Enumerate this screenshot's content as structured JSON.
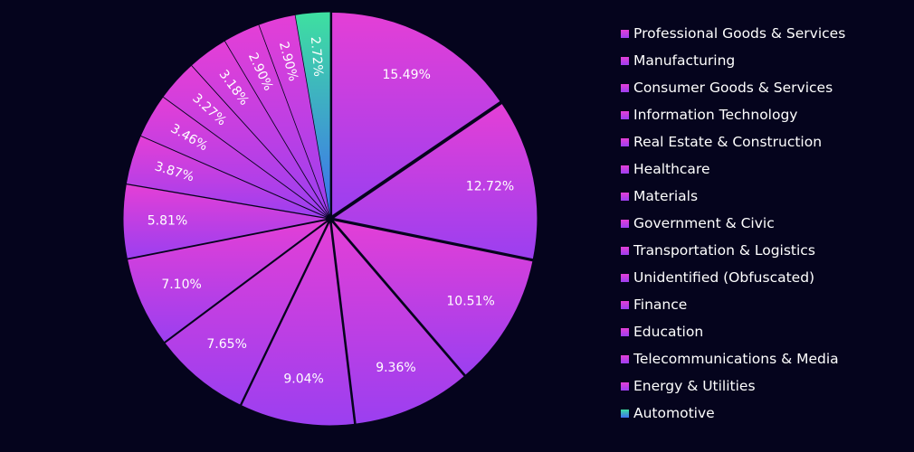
{
  "chart_data": {
    "type": "pie",
    "categories": [
      "Professional Goods & Services",
      "Manufacturing",
      "Consumer Goods & Services",
      "Information Technology",
      "Real Estate & Construction",
      "Healthcare",
      "Materials",
      "Government & Civic",
      "Transportation & Logistics",
      "Unidentified (Obfuscated)",
      "Finance",
      "Education",
      "Telecommunications & Media",
      "Energy & Utilities",
      "Automotive"
    ],
    "values": [
      15.49,
      12.72,
      10.51,
      9.36,
      9.04,
      7.65,
      7.1,
      5.81,
      3.87,
      3.46,
      3.27,
      3.18,
      2.9,
      2.9,
      2.72
    ],
    "labels": [
      "15.49%",
      "12.72%",
      "10.51%",
      "9.36%",
      "9.04%",
      "7.65%",
      "7.10%",
      "5.81%",
      "3.87%",
      "3.46%",
      "3.27%",
      "3.18%",
      "2.90%",
      "2.90%",
      "2.72%"
    ],
    "legend_position": "right",
    "colors": {
      "background": "#05041d",
      "magenta": "#e43fd6",
      "purple": "#9b3ff0",
      "automotive_top": "#3ee0a0",
      "automotive_bottom": "#3e6ff0"
    }
  }
}
